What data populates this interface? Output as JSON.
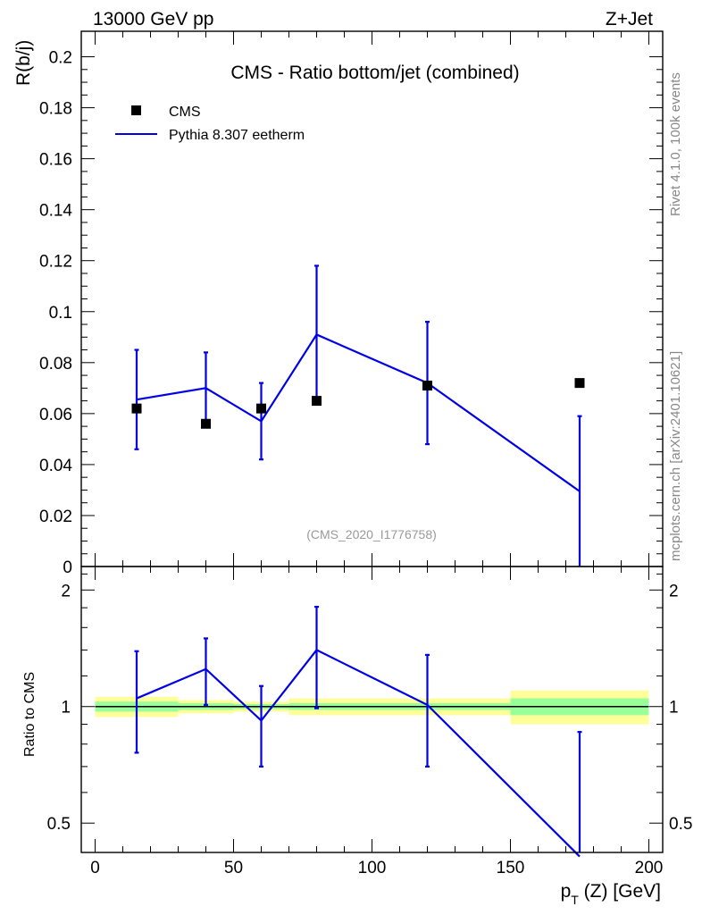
{
  "header": {
    "left": "13000 GeV pp",
    "right": "Z+Jet"
  },
  "side_labels": {
    "rivet": "Rivet 4.1.0,  100k events",
    "mcplots": "mcplots.cern.ch [arXiv:2401.10621]"
  },
  "colors": {
    "data": "#000000",
    "mc": "#0000e6",
    "band_inner": "#99ff99",
    "band_outer": "#ffff99"
  },
  "chart_data": [
    {
      "type": "scatter",
      "title": "CMS - Ratio bottom/jet (combined)",
      "ylabel": "R(b/j)",
      "watermark": "(CMS_2020_I1776758)",
      "xlim": [
        -5,
        205
      ],
      "ylim": [
        0,
        0.21
      ],
      "yticks": [
        0,
        0.02,
        0.04,
        0.06,
        0.08,
        0.1,
        0.12,
        0.14,
        0.16,
        0.18,
        0.2
      ],
      "ytick_labels": [
        "0",
        "0.02",
        "0.04",
        "0.06",
        "0.08",
        "0.1",
        "0.12",
        "0.14",
        "0.16",
        "0.18",
        "0.2"
      ],
      "legend": {
        "placement": "top-left",
        "entries": [
          "CMS",
          "Pythia 8.307 eetherm"
        ]
      },
      "series": [
        {
          "name": "CMS",
          "x": [
            15,
            40,
            60,
            80,
            120,
            175
          ],
          "y": [
            0.062,
            0.056,
            0.062,
            0.065,
            0.071,
            0.072
          ]
        },
        {
          "name": "Pythia 8.307 eetherm",
          "x": [
            15,
            40,
            60,
            80,
            120,
            175
          ],
          "y": [
            0.0655,
            0.07,
            0.057,
            0.091,
            0.072,
            0.0295
          ],
          "yerr_low": [
            0.0195,
            0.014,
            0.015,
            0.026,
            0.024,
            0.0295
          ],
          "yerr_high": [
            0.0195,
            0.014,
            0.015,
            0.027,
            0.024,
            0.0295
          ]
        }
      ]
    },
    {
      "type": "line",
      "ylabel": "Ratio to CMS",
      "xlabel": "p_T (Z) [GeV]",
      "xlim": [
        -5,
        205
      ],
      "ylim": [
        0.42,
        2.3
      ],
      "yscale": "log",
      "yticks": [
        0.5,
        1,
        2
      ],
      "ytick_labels": [
        "0.5",
        "1",
        "2"
      ],
      "xticks": [
        0,
        50,
        100,
        150,
        200
      ],
      "xtick_labels": [
        "0",
        "50",
        "100",
        "150",
        "200"
      ],
      "bands": [
        {
          "x": [
            0,
            30
          ],
          "inner": [
            0.97,
            1.03
          ],
          "outer": [
            0.94,
            1.06
          ]
        },
        {
          "x": [
            30,
            50
          ],
          "inner": [
            0.98,
            1.02
          ],
          "outer": [
            0.96,
            1.04
          ]
        },
        {
          "x": [
            50,
            70
          ],
          "inner": [
            0.985,
            1.015
          ],
          "outer": [
            0.97,
            1.03
          ]
        },
        {
          "x": [
            70,
            150
          ],
          "inner": [
            0.98,
            1.02
          ],
          "outer": [
            0.95,
            1.05
          ]
        },
        {
          "x": [
            150,
            200
          ],
          "inner": [
            0.95,
            1.05
          ],
          "outer": [
            0.9,
            1.1
          ]
        }
      ],
      "series": [
        {
          "name": "Pythia 8.307 eetherm",
          "x": [
            15,
            40,
            60,
            80,
            120,
            175
          ],
          "y": [
            1.05,
            1.25,
            0.92,
            1.4,
            1.01,
            0.41
          ],
          "yerr_low": [
            0.29,
            0.24,
            0.22,
            0.41,
            0.31,
            0.41
          ],
          "yerr_high": [
            0.34,
            0.25,
            0.21,
            0.41,
            0.35,
            0.45
          ]
        }
      ]
    }
  ]
}
